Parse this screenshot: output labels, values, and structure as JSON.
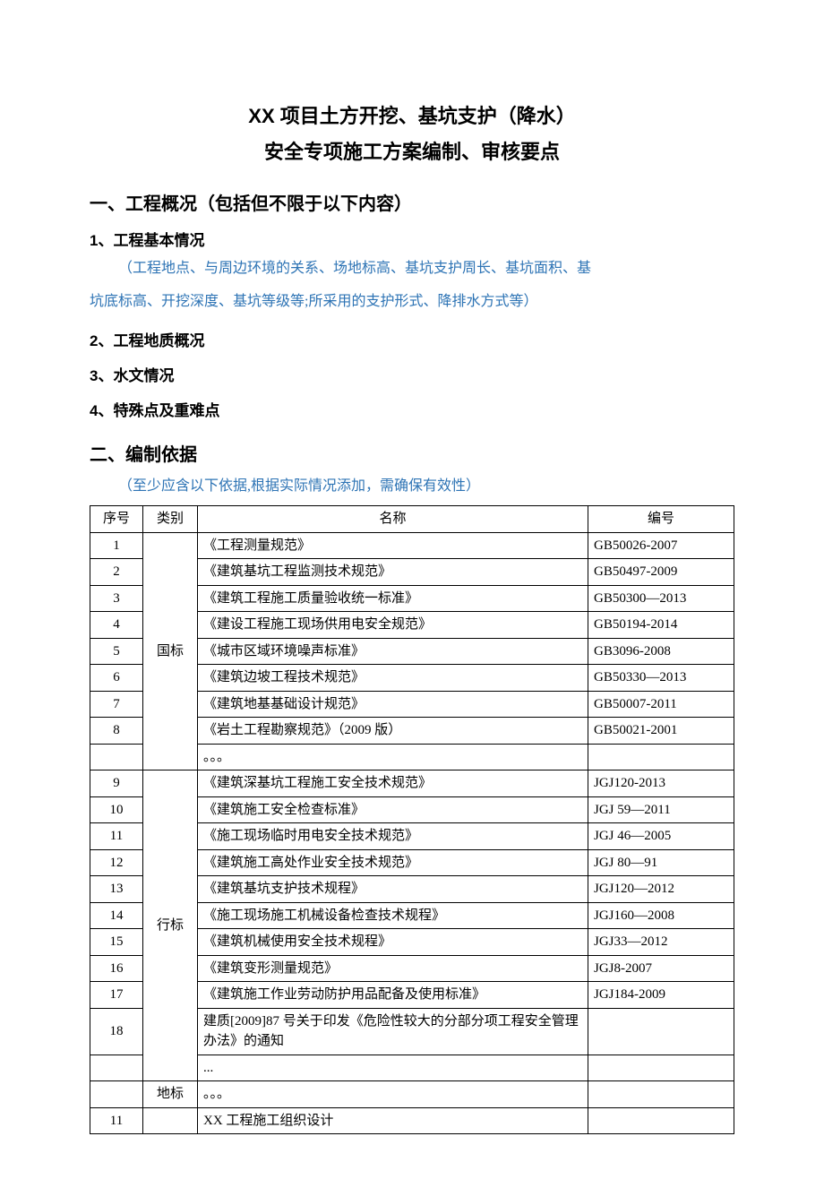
{
  "title": {
    "line1": "XX 项目土方开挖、基坑支护（降水）",
    "line2": "安全专项施工方案编制、审核要点"
  },
  "section1": {
    "heading": "一、工程概况（包括但不限于以下内容）",
    "sub1": "1、工程基本情况",
    "note_line1": "（工程地点、与周边环境的关系、场地标高、基坑支护周长、基坑面积、基",
    "note_line2": "坑底标高、开挖深度、基坑等级等;所采用的支护形式、降排水方式等）",
    "sub2": "2、工程地质概况",
    "sub3": "3、水文情况",
    "sub4": "4、特殊点及重难点"
  },
  "section2": {
    "heading": "二、编制依据",
    "note": "（至少应含以下依据,根据实际情况添加，需确保有效性）"
  },
  "note_color": "#2e74b5",
  "table": {
    "headers": {
      "seq": "序号",
      "cat": "类别",
      "name": "名称",
      "code": "编号"
    },
    "group1_cat": "国标",
    "group1": [
      {
        "seq": "1",
        "name": "《工程测量规范》",
        "code": "GB50026-2007"
      },
      {
        "seq": "2",
        "name": "《建筑基坑工程监测技术规范》",
        "code": "GB50497-2009"
      },
      {
        "seq": "3",
        "name": "《建筑工程施工质量验收统一标准》",
        "code": "GB50300—2013"
      },
      {
        "seq": "4",
        "name": "《建设工程施工现场供用电安全规范》",
        "code": "GB50194-2014"
      },
      {
        "seq": "5",
        "name": "《城市区域环境噪声标准》",
        "code": "GB3096-2008"
      },
      {
        "seq": "6",
        "name": "《建筑边坡工程技术规范》",
        "code": "GB50330—2013"
      },
      {
        "seq": "7",
        "name": "《建筑地基基础设计规范》",
        "code": "GB50007-2011"
      },
      {
        "seq": "8",
        "name": "《岩土工程勘察规范》（2009 版）",
        "code": "GB50021-2001"
      },
      {
        "seq": "",
        "name": "。。。",
        "code": ""
      }
    ],
    "group2_cat": "行标",
    "group2": [
      {
        "seq": "9",
        "name": "《建筑深基坑工程施工安全技术规范》",
        "code": "JGJ120-2013"
      },
      {
        "seq": "10",
        "name": "《建筑施工安全检查标准》",
        "code": "JGJ 59—2011"
      },
      {
        "seq": "11",
        "name": "《施工现场临时用电安全技术规范》",
        "code": "JGJ 46—2005"
      },
      {
        "seq": "12",
        "name": "《建筑施工高处作业安全技术规范》",
        "code": "JGJ 80—91"
      },
      {
        "seq": "13",
        "name": "《建筑基坑支护技术规程》",
        "code": "JGJ120—2012"
      },
      {
        "seq": "14",
        "name": "《施工现场施工机械设备检查技术规程》",
        "code": "JGJ160—2008"
      },
      {
        "seq": "15",
        "name": "《建筑机械使用安全技术规程》",
        "code": "JGJ33—2012"
      },
      {
        "seq": "16",
        "name": "《建筑变形测量规范》",
        "code": "JGJ8-2007"
      },
      {
        "seq": "17",
        "name": "《建筑施工作业劳动防护用品配备及使用标准》",
        "code": "JGJ184-2009"
      },
      {
        "seq": "18",
        "name": "建质[2009]87 号关于印发《危险性较大的分部分项工程安全管理办法》的通知",
        "code": ""
      },
      {
        "seq": "",
        "name": "...",
        "code": ""
      }
    ],
    "group3_cat": "地标",
    "group3": [
      {
        "seq": "",
        "name": "。。。",
        "code": ""
      }
    ],
    "tail": [
      {
        "seq": "11",
        "cat": "",
        "name": "XX 工程施工组织设计",
        "code": ""
      }
    ]
  }
}
